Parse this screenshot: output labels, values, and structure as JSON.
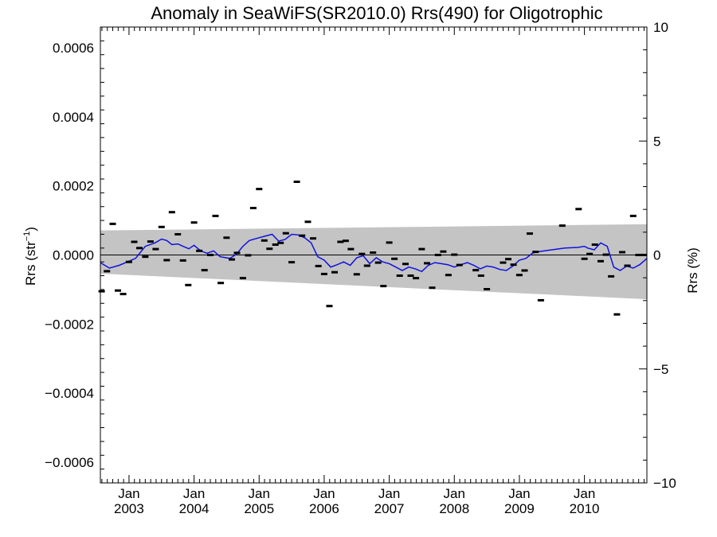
{
  "chart_data": {
    "type": "scatter",
    "title": "Anomaly in SeaWiFS(SR2010.0) Rrs(490) for Oligotrophic",
    "ylabel_left_main": "Rrs (str",
    "ylabel_left_sup": "−1",
    "ylabel_left_close": ")",
    "ylabel_right": "Rrs (%)",
    "x_range": [
      2002.56,
      2010.96
    ],
    "ylim_left": [
      -0.00066,
      0.00066
    ],
    "ylim_right": [
      -10,
      10
    ],
    "y_ticks_left": [
      {
        "value": 0.0006,
        "label": "0.0006"
      },
      {
        "value": 0.0004,
        "label": "0.0004"
      },
      {
        "value": 0.0002,
        "label": "0.0002"
      },
      {
        "value": 0.0,
        "label": "0.0000"
      },
      {
        "value": -0.0002,
        "label": "−0.0002"
      },
      {
        "value": -0.0004,
        "label": "−0.0004"
      },
      {
        "value": -0.0006,
        "label": "−0.0006"
      }
    ],
    "y_ticks_right": [
      {
        "value": 10,
        "label": "10"
      },
      {
        "value": 5,
        "label": "5"
      },
      {
        "value": 0,
        "label": "0"
      },
      {
        "value": -5,
        "label": "−5"
      },
      {
        "value": -10,
        "label": "−10"
      }
    ],
    "x_ticks": [
      {
        "value": 2003.0,
        "month": "Jan",
        "year": "2003"
      },
      {
        "value": 2004.0,
        "month": "Jan",
        "year": "2004"
      },
      {
        "value": 2005.0,
        "month": "Jan",
        "year": "2005"
      },
      {
        "value": 2006.0,
        "month": "Jan",
        "year": "2006"
      },
      {
        "value": 2007.0,
        "month": "Jan",
        "year": "2007"
      },
      {
        "value": 2008.0,
        "month": "Jan",
        "year": "2008"
      },
      {
        "value": 2009.0,
        "month": "Jan",
        "year": "2009"
      },
      {
        "value": 2010.0,
        "month": "Jan",
        "year": "2010"
      }
    ],
    "uncertainty_band": {
      "x": [
        2002.56,
        2010.96
      ],
      "upper": [
        7.1e-05,
        8.9e-05
      ],
      "lower": [
        -5.4e-05,
        -0.000128
      ]
    },
    "monthly_anomalies": {
      "x": [
        2002.58,
        2002.66,
        2002.75,
        2002.83,
        2002.91,
        2003.0,
        2003.08,
        2003.16,
        2003.25,
        2003.33,
        2003.41,
        2003.5,
        2003.58,
        2003.66,
        2003.75,
        2003.83,
        2003.91,
        2004.0,
        2004.08,
        2004.16,
        2004.25,
        2004.33,
        2004.41,
        2004.5,
        2004.58,
        2004.66,
        2004.75,
        2004.83,
        2004.91,
        2005.0,
        2005.08,
        2005.16,
        2005.25,
        2005.33,
        2005.41,
        2005.5,
        2005.58,
        2005.66,
        2005.75,
        2005.83,
        2005.91,
        2006.0,
        2006.08,
        2006.16,
        2006.25,
        2006.33,
        2006.41,
        2006.5,
        2006.58,
        2006.66,
        2006.75,
        2006.83,
        2006.91,
        2007.0,
        2007.08,
        2007.16,
        2007.25,
        2007.33,
        2007.41,
        2007.5,
        2007.58,
        2007.66,
        2007.75,
        2007.83,
        2007.91,
        2008.0,
        2008.08,
        2008.33,
        2008.41,
        2008.5,
        2008.75,
        2008.83,
        2008.91,
        2009.0,
        2009.08,
        2009.16,
        2009.25,
        2009.33,
        2009.66,
        2009.91,
        2010.0,
        2010.08,
        2010.16,
        2010.25,
        2010.33,
        2010.41,
        2010.5,
        2010.58,
        2010.66,
        2010.75,
        2010.83,
        2010.91
      ],
      "y": [
        -0.000105,
        -4.7e-05,
        9e-05,
        -0.000103,
        -0.000113,
        -2e-05,
        3.8e-05,
        2e-05,
        -5e-06,
        3.9e-05,
        1.7e-05,
        8.1e-05,
        -1.5e-05,
        0.000124,
        6e-05,
        -1.6e-05,
        -8.7e-05,
        9.4e-05,
        1.2e-05,
        -4.4e-05,
        0.0,
        0.000113,
        -8.1e-05,
        5e-05,
        -1.3e-05,
        6e-06,
        -6.7e-05,
        -1e-06,
        0.000136,
        0.000191,
        4.2e-05,
        1.8e-05,
        3e-05,
        3.5e-05,
        6.3e-05,
        -2.1e-05,
        0.000212,
        5.6e-05,
        9.6e-05,
        4.8e-05,
        -3.2e-05,
        -5.5e-05,
        -0.000148,
        -5e-05,
        3.8e-05,
        4.1e-05,
        1.7e-05,
        -5.6e-05,
        3e-06,
        -3.1e-05,
        7e-06,
        -2.2e-05,
        -9e-05,
        3.6e-05,
        -1.1e-05,
        -6e-05,
        -2.6e-05,
        -6e-05,
        -6.7e-05,
        1.7e-05,
        -2.4e-05,
        -9.5e-05,
        0.0,
        1e-05,
        -5.8e-05,
        1e-06,
        -2.9e-05,
        -4.4e-05,
        -6e-05,
        -9.9e-05,
        -2.2e-05,
        -1.2e-05,
        -2.8e-05,
        -5.8e-05,
        -4.5e-05,
        6.2e-05,
        9e-06,
        -0.000131,
        8.5e-05,
        0.000133,
        -1.1e-05,
        3e-06,
        3e-05,
        -1.8e-05,
        1e-06,
        -6.2e-05,
        -0.000172,
        8e-06,
        -3.1e-05,
        0.000113,
        0.0,
        0.0
      ]
    },
    "smoothed_series": {
      "x": [
        2002.56,
        2002.7,
        2002.85,
        2003.0,
        2003.1,
        2003.25,
        2003.4,
        2003.5,
        2003.58,
        2003.66,
        2003.75,
        2003.83,
        2003.92,
        2004.0,
        2004.1,
        2004.2,
        2004.3,
        2004.4,
        2004.55,
        2004.65,
        2004.75,
        2004.85,
        2005.0,
        2005.1,
        2005.2,
        2005.3,
        2005.4,
        2005.5,
        2005.6,
        2005.7,
        2005.8,
        2005.9,
        2006.0,
        2006.1,
        2006.2,
        2006.3,
        2006.4,
        2006.5,
        2006.6,
        2006.7,
        2006.8,
        2006.9,
        2007.0,
        2007.1,
        2007.2,
        2007.3,
        2007.4,
        2007.5,
        2007.6,
        2007.7,
        2007.8,
        2007.9,
        2008.0,
        2008.1,
        2008.2,
        2008.3,
        2008.4,
        2008.5,
        2008.6,
        2008.7,
        2008.8,
        2008.9,
        2009.0,
        2009.1,
        2009.2,
        2009.3,
        2009.5,
        2009.7,
        2009.9,
        2010.0,
        2010.05,
        2010.15,
        2010.25,
        2010.35,
        2010.45,
        2010.55,
        2010.65,
        2010.75,
        2010.85,
        2010.96
      ],
      "y": [
        -2.2e-05,
        -3.8e-05,
        -3e-05,
        -1.8e-05,
        -1e-05,
        2.5e-05,
        3.5e-05,
        4.6e-05,
        4.2e-05,
        3e-05,
        3.2e-05,
        2.5e-05,
        1.8e-05,
        2.8e-05,
        1.2e-05,
        5e-06,
        1.2e-05,
        -5e-06,
        -1e-05,
        2e-06,
        2.5e-05,
        4.2e-05,
        5e-05,
        5.5e-05,
        6e-05,
        4e-05,
        4.5e-05,
        6e-05,
        5.8e-05,
        5e-05,
        3.5e-05,
        -5e-06,
        -1.5e-05,
        -3.5e-05,
        -2.8e-05,
        -2e-05,
        -3e-05,
        -8e-06,
        -2e-06,
        -2.5e-05,
        -8e-06,
        -2e-05,
        -2.5e-05,
        -3.5e-05,
        -4.5e-05,
        -3.5e-05,
        -4e-05,
        -4.8e-05,
        -3e-05,
        -2.2e-05,
        -2.5e-05,
        -2.8e-05,
        -3.5e-05,
        -2.8e-05,
        -2.2e-05,
        -3e-05,
        -4e-05,
        -3.2e-05,
        -3.5e-05,
        -4.2e-05,
        -4.5e-05,
        -3.2e-05,
        -1.5e-05,
        -1e-05,
        5e-06,
        1e-05,
        1.5e-05,
        2e-05,
        2.2e-05,
        2.5e-05,
        2e-05,
        1.5e-05,
        3.5e-05,
        2.5e-05,
        -3.5e-05,
        -4.5e-05,
        -3.2e-05,
        -3.8e-05,
        -2.8e-05,
        -1e-05
      ]
    },
    "colors": {
      "band": "#c4c4c4",
      "smoothed": "#1010e0",
      "points": "#000000",
      "zero_line": "#000000"
    },
    "grid": false,
    "legend": "none"
  }
}
